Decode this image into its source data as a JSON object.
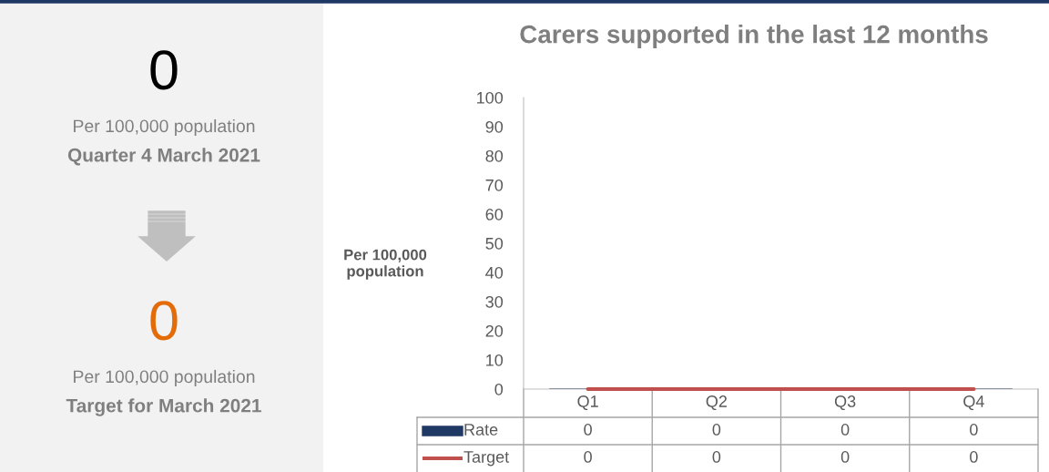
{
  "chart_data": [
    {
      "type": "other",
      "annotations": [
        "0",
        "Per 100,000 population",
        "Quarter 4 March 2021",
        "0",
        "Per 100,000 population",
        "Target for March 2021"
      ]
    },
    {
      "type": "bar",
      "title": "Carers supported in the last 12 months",
      "ylabel": "Per 100,000 population",
      "categories": [
        "Q1",
        "Q2",
        "Q3",
        "Q4"
      ],
      "series": [
        {
          "name": "Rate",
          "type": "bar",
          "color": "#1f3864",
          "values": [
            0,
            0,
            0,
            0
          ]
        },
        {
          "name": "Target",
          "type": "line",
          "color": "#c0504d",
          "values": [
            0,
            0,
            0,
            0
          ]
        }
      ],
      "ylim": [
        0,
        100
      ],
      "yticks": [
        0,
        10,
        20,
        30,
        40,
        50,
        60,
        70,
        80,
        90,
        100
      ],
      "data_labels": true,
      "legend": "bottom",
      "grid": false,
      "marker": "none"
    }
  ]
}
